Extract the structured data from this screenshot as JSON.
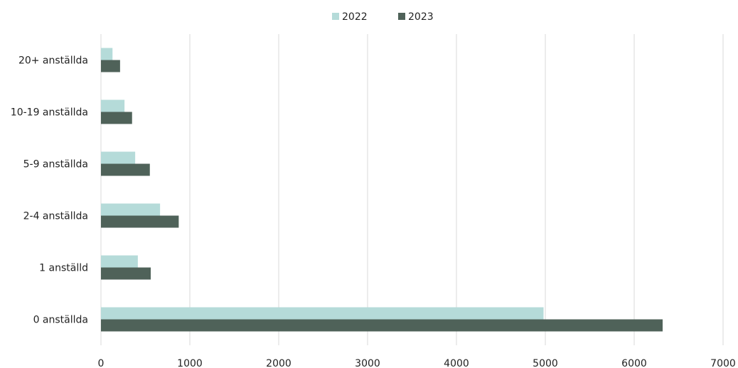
{
  "chart_data": {
    "type": "bar",
    "orientation": "horizontal",
    "categories": [
      "20+ anställda",
      "10-19 anställda",
      "5-9 anställda",
      "2-4 anställda",
      "1 anställd",
      "0 anställda"
    ],
    "series": [
      {
        "name": "2022",
        "values": [
          130,
          265,
          385,
          665,
          415,
          4980
        ],
        "color": "#b5dbd9"
      },
      {
        "name": "2023",
        "values": [
          215,
          350,
          550,
          875,
          560,
          6320
        ],
        "color": "#4f6259"
      }
    ],
    "xlim": [
      0,
      7000
    ],
    "xticks": [
      "0",
      "1000",
      "2000",
      "3000",
      "4000",
      "5000",
      "6000",
      "7000"
    ],
    "grid": "vertical",
    "legend_position": "top-center",
    "gridline_color": "#d9d9d9"
  }
}
